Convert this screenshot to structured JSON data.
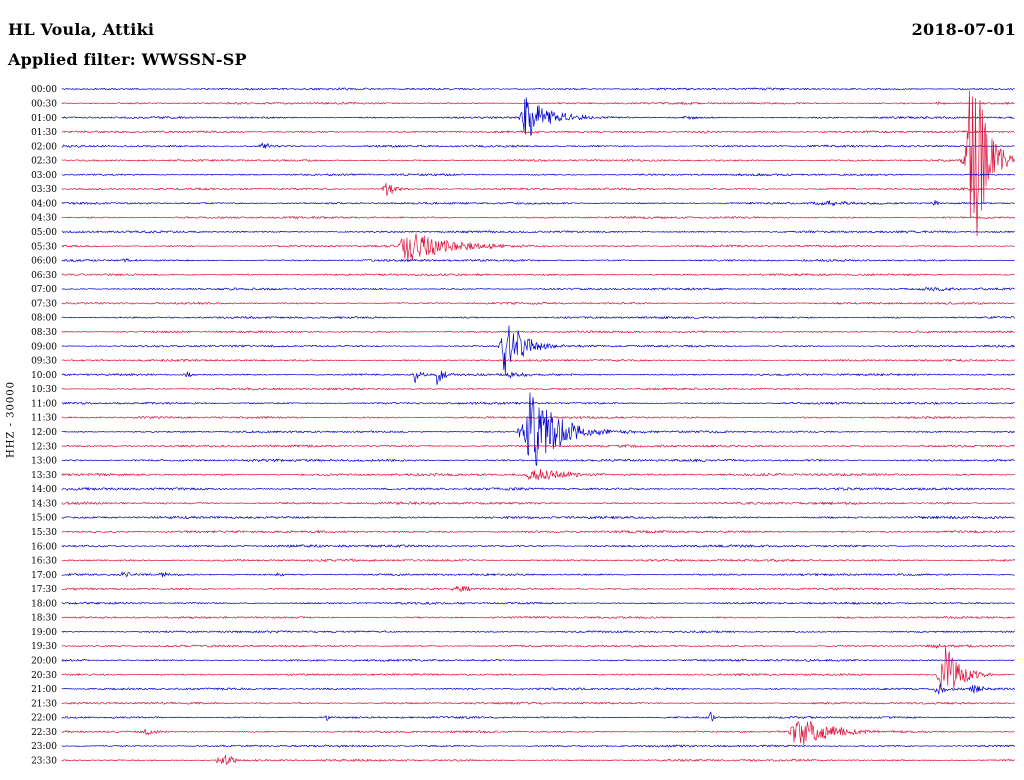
{
  "header": {
    "station": "HL Voula, Attiki",
    "date": "2018-07-01",
    "filter": "Applied filter: WWSSN-SP"
  },
  "axis": {
    "label": "HHZ - 30000"
  },
  "chart_data": {
    "type": "line",
    "title": "HL Voula, Attiki",
    "date": "2018-07-01",
    "filter": "WWSSN-SP",
    "channel": "HHZ",
    "gain": "30000",
    "row_interval_minutes": 30,
    "rows_start": "00:00",
    "rows_end": "23:30",
    "palette": {
      "blue": "#0000cc",
      "red": "#dc143c"
    },
    "description": "24-hour helicorder, 48 half-hour traces, alternating blue/red; event pos = fraction along 30-min row, amp in px, rise/decay in px",
    "rows": [
      {
        "time": "00:00",
        "color": "blue",
        "events": []
      },
      {
        "time": "00:30",
        "color": "red",
        "events": [
          {
            "pos": 0.92,
            "amp": 2,
            "rise": 4,
            "decay": 6
          }
        ]
      },
      {
        "time": "01:00",
        "color": "blue",
        "events": [
          {
            "pos": 0.487,
            "amp": 22,
            "rise": 3,
            "decay": 22
          },
          {
            "pos": 0.659,
            "amp": 2,
            "rise": 4,
            "decay": 6
          }
        ]
      },
      {
        "time": "01:30",
        "color": "red",
        "events": [
          {
            "pos": 0.672,
            "amp": 1.8,
            "rise": 8,
            "decay": 10
          }
        ]
      },
      {
        "time": "02:00",
        "color": "blue",
        "events": [
          {
            "pos": 0.212,
            "amp": 4,
            "rise": 4,
            "decay": 6
          }
        ]
      },
      {
        "time": "02:30",
        "color": "red",
        "events": [
          {
            "pos": 0.956,
            "amp": 115,
            "rise": 4,
            "decay": 13
          }
        ]
      },
      {
        "time": "03:00",
        "color": "blue",
        "events": []
      },
      {
        "time": "03:30",
        "color": "red",
        "events": [
          {
            "pos": 0.341,
            "amp": 9,
            "rise": 2.5,
            "decay": 7
          }
        ]
      },
      {
        "time": "04:00",
        "color": "blue",
        "events": [
          {
            "pos": 0.806,
            "amp": 2.2,
            "rise": 15,
            "decay": 25
          },
          {
            "pos": 0.916,
            "amp": 3.5,
            "rise": 2,
            "decay": 4
          }
        ]
      },
      {
        "time": "04:30",
        "color": "red",
        "events": []
      },
      {
        "time": "05:00",
        "color": "blue",
        "events": []
      },
      {
        "time": "05:30",
        "color": "red",
        "events": [
          {
            "pos": 0.362,
            "amp": 17,
            "rise": 4,
            "decay": 40
          }
        ]
      },
      {
        "time": "06:00",
        "color": "blue",
        "events": [
          {
            "pos": 0.068,
            "amp": 2.2,
            "rise": 4,
            "decay": 8
          }
        ]
      },
      {
        "time": "06:30",
        "color": "red",
        "events": []
      },
      {
        "time": "07:00",
        "color": "blue",
        "events": [
          {
            "pos": 0.93,
            "amp": 1.5,
            "rise": 30,
            "decay": 40
          }
        ]
      },
      {
        "time": "07:30",
        "color": "red",
        "events": []
      },
      {
        "time": "08:00",
        "color": "blue",
        "events": []
      },
      {
        "time": "08:30",
        "color": "red",
        "events": []
      },
      {
        "time": "09:00",
        "color": "blue",
        "events": [
          {
            "pos": 0.466,
            "amp": 33,
            "rise": 3,
            "decay": 16
          }
        ]
      },
      {
        "time": "09:30",
        "color": "red",
        "events": []
      },
      {
        "time": "10:00",
        "color": "blue",
        "events": [
          {
            "pos": 0.132,
            "amp": 3,
            "rise": 3,
            "decay": 5
          },
          {
            "pos": 0.371,
            "amp": 9,
            "rise": 1.5,
            "decay": 4
          },
          {
            "pos": 0.394,
            "amp": 17,
            "rise": 1.5,
            "decay": 6
          },
          {
            "pos": 0.47,
            "amp": 3,
            "rise": 8,
            "decay": 15
          }
        ]
      },
      {
        "time": "10:30",
        "color": "red",
        "events": []
      },
      {
        "time": "11:00",
        "color": "blue",
        "events": []
      },
      {
        "time": "11:30",
        "color": "red",
        "events": []
      },
      {
        "time": "12:00",
        "color": "blue",
        "events": [
          {
            "pos": 0.481,
            "amp": 9,
            "rise": 2,
            "decay": 3
          },
          {
            "pos": 0.492,
            "amp": 42,
            "rise": 4,
            "decay": 28
          }
        ]
      },
      {
        "time": "12:30",
        "color": "red",
        "noise": 1.15,
        "events": []
      },
      {
        "time": "13:00",
        "color": "blue",
        "noise": 1.2,
        "events": []
      },
      {
        "time": "13:30",
        "color": "red",
        "noise": 1.2,
        "events": [
          {
            "pos": 0.493,
            "amp": 8,
            "rise": 3,
            "decay": 35
          }
        ]
      },
      {
        "time": "14:00",
        "color": "blue",
        "noise": 1.2,
        "events": []
      },
      {
        "time": "14:30",
        "color": "red",
        "noise": 1.2,
        "events": []
      },
      {
        "time": "15:00",
        "color": "blue",
        "noise": 1.2,
        "events": []
      },
      {
        "time": "15:30",
        "color": "red",
        "noise": 1.2,
        "events": []
      },
      {
        "time": "16:00",
        "color": "blue",
        "noise": 1.2,
        "events": []
      },
      {
        "time": "16:30",
        "color": "red",
        "noise": 1.15,
        "events": []
      },
      {
        "time": "17:00",
        "color": "blue",
        "events": [
          {
            "pos": 0.066,
            "amp": 3,
            "rise": 5,
            "decay": 8
          },
          {
            "pos": 0.108,
            "amp": 3,
            "rise": 3,
            "decay": 6
          },
          {
            "pos": 0.228,
            "amp": 1.8,
            "rise": 3,
            "decay": 5
          }
        ]
      },
      {
        "time": "17:30",
        "color": "red",
        "events": [
          {
            "pos": 0.419,
            "amp": 3.5,
            "rise": 6,
            "decay": 10
          }
        ]
      },
      {
        "time": "18:00",
        "color": "blue",
        "events": []
      },
      {
        "time": "18:30",
        "color": "red",
        "events": []
      },
      {
        "time": "19:00",
        "color": "blue",
        "events": []
      },
      {
        "time": "19:30",
        "color": "red",
        "events": [
          {
            "pos": 0.92,
            "amp": 2,
            "rise": 10,
            "decay": 12
          }
        ]
      },
      {
        "time": "20:00",
        "color": "blue",
        "events": []
      },
      {
        "time": "20:30",
        "color": "red",
        "events": [
          {
            "pos": 0.927,
            "amp": 33,
            "rise": 4,
            "decay": 14
          }
        ]
      },
      {
        "time": "21:00",
        "color": "blue",
        "events": [
          {
            "pos": 0.921,
            "amp": 7,
            "rise": 3,
            "decay": 6
          },
          {
            "pos": 0.958,
            "amp": 5,
            "rise": 3,
            "decay": 6
          }
        ]
      },
      {
        "time": "21:30",
        "color": "red",
        "events": []
      },
      {
        "time": "22:00",
        "color": "blue",
        "events": [
          {
            "pos": 0.277,
            "amp": 5,
            "rise": 1.5,
            "decay": 3
          },
          {
            "pos": 0.681,
            "amp": 5,
            "rise": 2,
            "decay": 4
          }
        ]
      },
      {
        "time": "22:30",
        "color": "red",
        "events": [
          {
            "pos": 0.089,
            "amp": 4,
            "rise": 3,
            "decay": 6
          },
          {
            "pos": 0.772,
            "amp": 17,
            "rise": 4,
            "decay": 30
          }
        ]
      },
      {
        "time": "23:00",
        "color": "blue",
        "events": []
      },
      {
        "time": "23:30",
        "color": "red",
        "events": [
          {
            "pos": 0.168,
            "amp": 9,
            "rise": 3,
            "decay": 10
          }
        ]
      }
    ]
  }
}
